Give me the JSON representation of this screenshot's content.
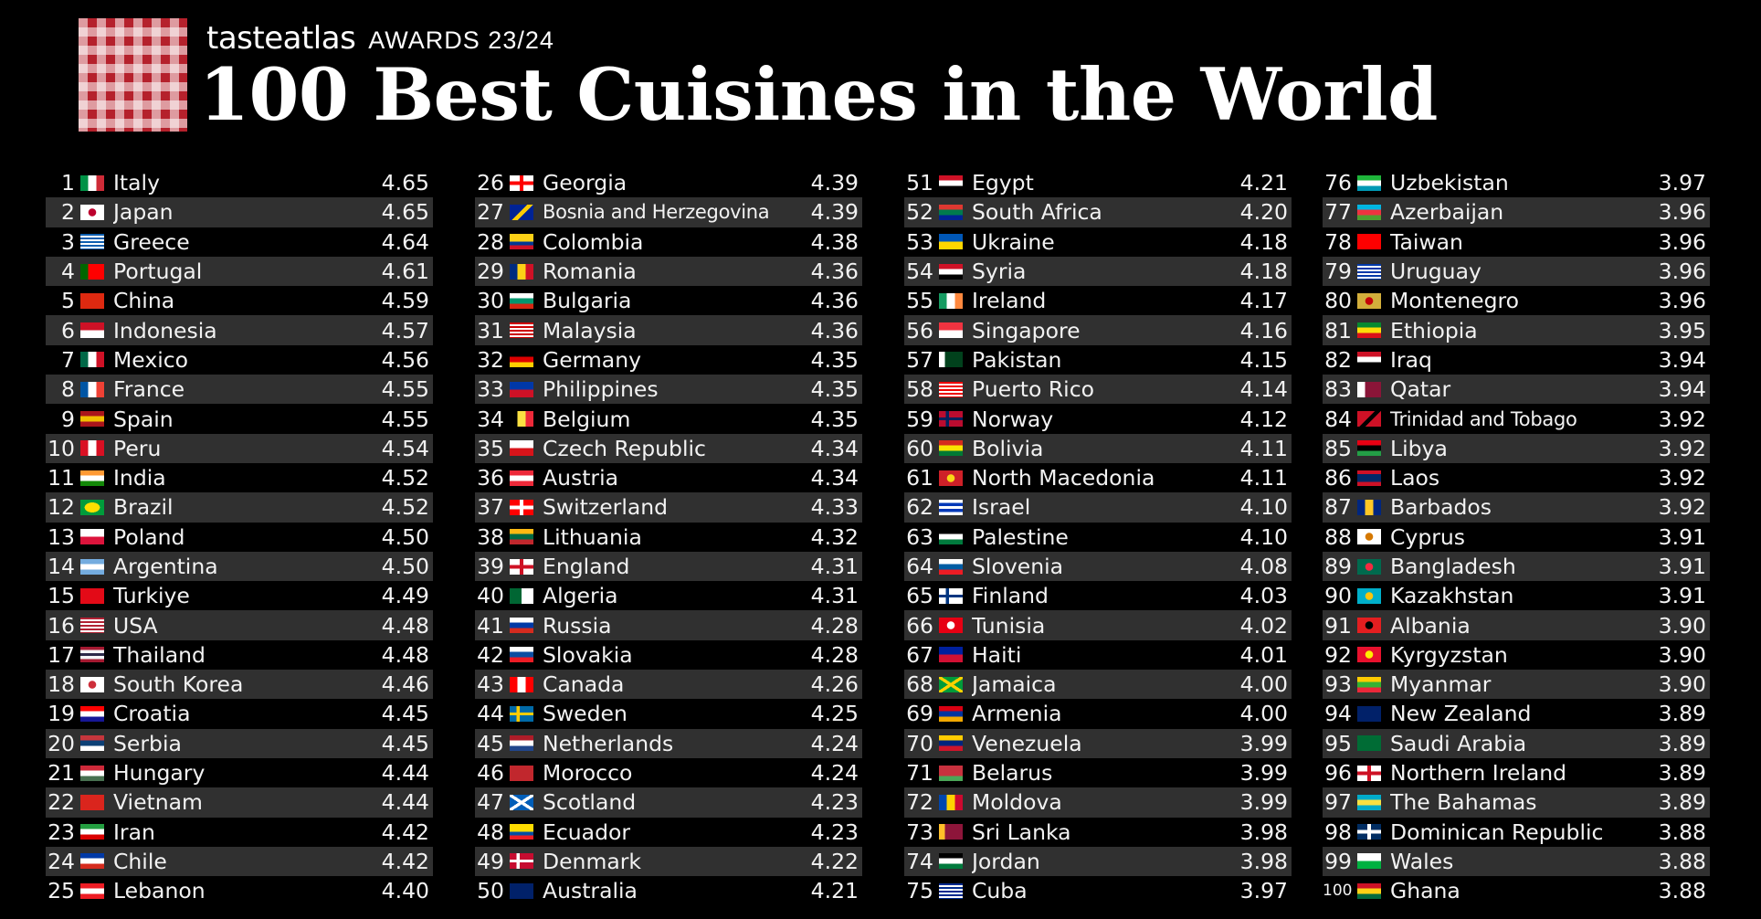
{
  "header": {
    "brand": "tasteatlas",
    "awards": "AWARDS 23/24",
    "title": "100 Best Cuisines in the World"
  },
  "columns": [
    [
      {
        "rank": "1",
        "country": "Italy",
        "score": "4.65",
        "flag": [
          "#009246",
          "#ffffff",
          "#ce2b37"
        ],
        "dir": "v"
      },
      {
        "rank": "2",
        "country": "Japan",
        "score": "4.65",
        "flag": [
          "#ffffff",
          "#bc002d"
        ],
        "dir": "dot"
      },
      {
        "rank": "3",
        "country": "Greece",
        "score": "4.64",
        "flag": [
          "#0d5eaf",
          "#ffffff"
        ],
        "dir": "stripes"
      },
      {
        "rank": "4",
        "country": "Portugal",
        "score": "4.61",
        "flag": [
          "#006600",
          "#ff0000",
          "#ff0000"
        ],
        "dir": "v"
      },
      {
        "rank": "5",
        "country": "China",
        "score": "4.59",
        "flag": [
          "#de2910"
        ],
        "dir": "solid"
      },
      {
        "rank": "6",
        "country": "Indonesia",
        "score": "4.57",
        "flag": [
          "#ce1126",
          "#ffffff"
        ],
        "dir": "h"
      },
      {
        "rank": "7",
        "country": "Mexico",
        "score": "4.56",
        "flag": [
          "#006847",
          "#ffffff",
          "#ce1126"
        ],
        "dir": "v"
      },
      {
        "rank": "8",
        "country": "France",
        "score": "4.55",
        "flag": [
          "#0055a4",
          "#ffffff",
          "#ef4135"
        ],
        "dir": "v"
      },
      {
        "rank": "9",
        "country": "Spain",
        "score": "4.55",
        "flag": [
          "#aa151b",
          "#f1bf00",
          "#aa151b"
        ],
        "dir": "h"
      },
      {
        "rank": "10",
        "country": "Peru",
        "score": "4.54",
        "flag": [
          "#d91023",
          "#ffffff",
          "#d91023"
        ],
        "dir": "v"
      },
      {
        "rank": "11",
        "country": "India",
        "score": "4.52",
        "flag": [
          "#ff9933",
          "#ffffff",
          "#138808"
        ],
        "dir": "h"
      },
      {
        "rank": "12",
        "country": "Brazil",
        "score": "4.52",
        "flag": [
          "#009c3b",
          "#ffdf00"
        ],
        "dir": "diamond"
      },
      {
        "rank": "13",
        "country": "Poland",
        "score": "4.50",
        "flag": [
          "#ffffff",
          "#dc143c"
        ],
        "dir": "h"
      },
      {
        "rank": "14",
        "country": "Argentina",
        "score": "4.50",
        "flag": [
          "#74acdf",
          "#ffffff",
          "#74acdf"
        ],
        "dir": "h"
      },
      {
        "rank": "15",
        "country": "Turkiye",
        "score": "4.49",
        "flag": [
          "#e30a17"
        ],
        "dir": "solid"
      },
      {
        "rank": "16",
        "country": "USA",
        "score": "4.48",
        "flag": [
          "#b22234",
          "#ffffff"
        ],
        "dir": "stripes"
      },
      {
        "rank": "17",
        "country": "Thailand",
        "score": "4.48",
        "flag": [
          "#a51931",
          "#f4f5f8",
          "#2d2a4a",
          "#f4f5f8",
          "#a51931"
        ],
        "dir": "h"
      },
      {
        "rank": "18",
        "country": "South Korea",
        "score": "4.46",
        "flag": [
          "#ffffff",
          "#cd2e3a"
        ],
        "dir": "dot"
      },
      {
        "rank": "19",
        "country": "Croatia",
        "score": "4.45",
        "flag": [
          "#ff0000",
          "#ffffff",
          "#171796"
        ],
        "dir": "h"
      },
      {
        "rank": "20",
        "country": "Serbia",
        "score": "4.45",
        "flag": [
          "#c6363c",
          "#0c4076",
          "#ffffff"
        ],
        "dir": "h"
      },
      {
        "rank": "21",
        "country": "Hungary",
        "score": "4.44",
        "flag": [
          "#ce2939",
          "#ffffff",
          "#477050"
        ],
        "dir": "h"
      },
      {
        "rank": "22",
        "country": "Vietnam",
        "score": "4.44",
        "flag": [
          "#da251d"
        ],
        "dir": "solid"
      },
      {
        "rank": "23",
        "country": "Iran",
        "score": "4.42",
        "flag": [
          "#239f40",
          "#ffffff",
          "#da0000"
        ],
        "dir": "h"
      },
      {
        "rank": "24",
        "country": "Chile",
        "score": "4.42",
        "flag": [
          "#0039a6",
          "#ffffff",
          "#d52b1e"
        ],
        "dir": "h"
      },
      {
        "rank": "25",
        "country": "Lebanon",
        "score": "4.40",
        "flag": [
          "#ed1c24",
          "#ffffff",
          "#ed1c24"
        ],
        "dir": "h"
      }
    ],
    [
      {
        "rank": "26",
        "country": "Georgia",
        "score": "4.39",
        "flag": [
          "#ffffff",
          "#ff0000"
        ],
        "dir": "cross"
      },
      {
        "rank": "27",
        "country": "Bosnia and Herzegovina",
        "score": "4.39",
        "flag": [
          "#002395",
          "#fecb00"
        ],
        "dir": "diag"
      },
      {
        "rank": "28",
        "country": "Colombia",
        "score": "4.38",
        "flag": [
          "#fcd116",
          "#fcd116",
          "#003893",
          "#ce1126"
        ],
        "dir": "h"
      },
      {
        "rank": "29",
        "country": "Romania",
        "score": "4.36",
        "flag": [
          "#002b7f",
          "#fcd116",
          "#ce1126"
        ],
        "dir": "v"
      },
      {
        "rank": "30",
        "country": "Bulgaria",
        "score": "4.36",
        "flag": [
          "#ffffff",
          "#00966e",
          "#d62612"
        ],
        "dir": "h"
      },
      {
        "rank": "31",
        "country": "Malaysia",
        "score": "4.36",
        "flag": [
          "#cc0001",
          "#ffffff"
        ],
        "dir": "stripes"
      },
      {
        "rank": "32",
        "country": "Germany",
        "score": "4.35",
        "flag": [
          "#000000",
          "#dd0000",
          "#ffce00"
        ],
        "dir": "h"
      },
      {
        "rank": "33",
        "country": "Philippines",
        "score": "4.35",
        "flag": [
          "#0038a8",
          "#ce1126"
        ],
        "dir": "h"
      },
      {
        "rank": "34",
        "country": "Belgium",
        "score": "4.35",
        "flag": [
          "#000000",
          "#fae042",
          "#ed2939"
        ],
        "dir": "v"
      },
      {
        "rank": "35",
        "country": "Czech Republic",
        "score": "4.34",
        "flag": [
          "#ffffff",
          "#d7141a"
        ],
        "dir": "h"
      },
      {
        "rank": "36",
        "country": "Austria",
        "score": "4.34",
        "flag": [
          "#ed2939",
          "#ffffff",
          "#ed2939"
        ],
        "dir": "h"
      },
      {
        "rank": "37",
        "country": "Switzerland",
        "score": "4.33",
        "flag": [
          "#ff0000",
          "#ffffff"
        ],
        "dir": "plus"
      },
      {
        "rank": "38",
        "country": "Lithuania",
        "score": "4.32",
        "flag": [
          "#fdb913",
          "#006a44",
          "#c1272d"
        ],
        "dir": "h"
      },
      {
        "rank": "39",
        "country": "England",
        "score": "4.31",
        "flag": [
          "#ffffff",
          "#ce1124"
        ],
        "dir": "cross"
      },
      {
        "rank": "40",
        "country": "Algeria",
        "score": "4.31",
        "flag": [
          "#006633",
          "#ffffff"
        ],
        "dir": "v"
      },
      {
        "rank": "41",
        "country": "Russia",
        "score": "4.28",
        "flag": [
          "#ffffff",
          "#0039a6",
          "#d52b1e"
        ],
        "dir": "h"
      },
      {
        "rank": "42",
        "country": "Slovakia",
        "score": "4.28",
        "flag": [
          "#ffffff",
          "#0b4ea2",
          "#ee1c25"
        ],
        "dir": "h"
      },
      {
        "rank": "43",
        "country": "Canada",
        "score": "4.26",
        "flag": [
          "#ff0000",
          "#ffffff",
          "#ff0000"
        ],
        "dir": "v"
      },
      {
        "rank": "44",
        "country": "Sweden",
        "score": "4.25",
        "flag": [
          "#006aa7",
          "#fecc00"
        ],
        "dir": "nordic"
      },
      {
        "rank": "45",
        "country": "Netherlands",
        "score": "4.24",
        "flag": [
          "#ae1c28",
          "#ffffff",
          "#21468b"
        ],
        "dir": "h"
      },
      {
        "rank": "46",
        "country": "Morocco",
        "score": "4.24",
        "flag": [
          "#c1272d"
        ],
        "dir": "solid"
      },
      {
        "rank": "47",
        "country": "Scotland",
        "score": "4.23",
        "flag": [
          "#005eb8",
          "#ffffff"
        ],
        "dir": "saltire"
      },
      {
        "rank": "48",
        "country": "Ecuador",
        "score": "4.23",
        "flag": [
          "#ffdd00",
          "#ffdd00",
          "#034ea2",
          "#ed1c24"
        ],
        "dir": "h"
      },
      {
        "rank": "49",
        "country": "Denmark",
        "score": "4.22",
        "flag": [
          "#c60c30",
          "#ffffff"
        ],
        "dir": "nordic"
      },
      {
        "rank": "50",
        "country": "Australia",
        "score": "4.21",
        "flag": [
          "#012169"
        ],
        "dir": "solid"
      }
    ],
    [
      {
        "rank": "51",
        "country": "Egypt",
        "score": "4.21",
        "flag": [
          "#ce1126",
          "#ffffff",
          "#000000"
        ],
        "dir": "h"
      },
      {
        "rank": "52",
        "country": "South Africa",
        "score": "4.20",
        "flag": [
          "#de3831",
          "#007a4d",
          "#002395"
        ],
        "dir": "h"
      },
      {
        "rank": "53",
        "country": "Ukraine",
        "score": "4.18",
        "flag": [
          "#0057b7",
          "#ffd700"
        ],
        "dir": "h"
      },
      {
        "rank": "54",
        "country": "Syria",
        "score": "4.18",
        "flag": [
          "#ce1126",
          "#ffffff",
          "#000000"
        ],
        "dir": "h"
      },
      {
        "rank": "55",
        "country": "Ireland",
        "score": "4.17",
        "flag": [
          "#169b62",
          "#ffffff",
          "#ff883e"
        ],
        "dir": "v"
      },
      {
        "rank": "56",
        "country": "Singapore",
        "score": "4.16",
        "flag": [
          "#ef3340",
          "#ffffff"
        ],
        "dir": "h"
      },
      {
        "rank": "57",
        "country": "Pakistan",
        "score": "4.15",
        "flag": [
          "#ffffff",
          "#01411c",
          "#01411c",
          "#01411c"
        ],
        "dir": "v"
      },
      {
        "rank": "58",
        "country": "Puerto Rico",
        "score": "4.14",
        "flag": [
          "#ed0000",
          "#ffffff"
        ],
        "dir": "stripes"
      },
      {
        "rank": "59",
        "country": "Norway",
        "score": "4.12",
        "flag": [
          "#ba0c2f",
          "#00205b"
        ],
        "dir": "nordic"
      },
      {
        "rank": "60",
        "country": "Bolivia",
        "score": "4.11",
        "flag": [
          "#d52b1e",
          "#f9e300",
          "#007934"
        ],
        "dir": "h"
      },
      {
        "rank": "61",
        "country": "North Macedonia",
        "score": "4.11",
        "flag": [
          "#ce2028",
          "#f9d616"
        ],
        "dir": "sun"
      },
      {
        "rank": "62",
        "country": "Israel",
        "score": "4.10",
        "flag": [
          "#ffffff",
          "#0038b8",
          "#ffffff",
          "#0038b8",
          "#ffffff"
        ],
        "dir": "h"
      },
      {
        "rank": "63",
        "country": "Palestine",
        "score": "4.10",
        "flag": [
          "#000000",
          "#ffffff",
          "#007a3d"
        ],
        "dir": "h"
      },
      {
        "rank": "64",
        "country": "Slovenia",
        "score": "4.08",
        "flag": [
          "#ffffff",
          "#005da4",
          "#ed1c24"
        ],
        "dir": "h"
      },
      {
        "rank": "65",
        "country": "Finland",
        "score": "4.03",
        "flag": [
          "#ffffff",
          "#003580"
        ],
        "dir": "nordic"
      },
      {
        "rank": "66",
        "country": "Tunisia",
        "score": "4.02",
        "flag": [
          "#e70013",
          "#ffffff"
        ],
        "dir": "dot"
      },
      {
        "rank": "67",
        "country": "Haiti",
        "score": "4.01",
        "flag": [
          "#00209f",
          "#d21034"
        ],
        "dir": "h"
      },
      {
        "rank": "68",
        "country": "Jamaica",
        "score": "4.00",
        "flag": [
          "#009b3a",
          "#fed100"
        ],
        "dir": "saltire"
      },
      {
        "rank": "69",
        "country": "Armenia",
        "score": "4.00",
        "flag": [
          "#d90012",
          "#0033a0",
          "#f2a800"
        ],
        "dir": "h"
      },
      {
        "rank": "70",
        "country": "Venezuela",
        "score": "3.99",
        "flag": [
          "#ffcc00",
          "#00247d",
          "#cf142b"
        ],
        "dir": "h"
      },
      {
        "rank": "71",
        "country": "Belarus",
        "score": "3.99",
        "flag": [
          "#c8313e",
          "#c8313e",
          "#4aa657"
        ],
        "dir": "h"
      },
      {
        "rank": "72",
        "country": "Moldova",
        "score": "3.99",
        "flag": [
          "#0046ae",
          "#ffd200",
          "#cc092f"
        ],
        "dir": "v"
      },
      {
        "rank": "73",
        "country": "Sri Lanka",
        "score": "3.98",
        "flag": [
          "#ffbe29",
          "#8d153a",
          "#8d153a",
          "#8d153a"
        ],
        "dir": "v"
      },
      {
        "rank": "74",
        "country": "Jordan",
        "score": "3.98",
        "flag": [
          "#000000",
          "#ffffff",
          "#007a3d"
        ],
        "dir": "h"
      },
      {
        "rank": "75",
        "country": "Cuba",
        "score": "3.97",
        "flag": [
          "#002a8f",
          "#ffffff"
        ],
        "dir": "stripes"
      }
    ],
    [
      {
        "rank": "76",
        "country": "Uzbekistan",
        "score": "3.97",
        "flag": [
          "#1eb53a",
          "#ffffff",
          "#0099b5"
        ],
        "dir": "h"
      },
      {
        "rank": "77",
        "country": "Azerbaijan",
        "score": "3.96",
        "flag": [
          "#00b5e2",
          "#ef3340",
          "#509e2f"
        ],
        "dir": "h"
      },
      {
        "rank": "78",
        "country": "Taiwan",
        "score": "3.96",
        "flag": [
          "#fe0000"
        ],
        "dir": "solid"
      },
      {
        "rank": "79",
        "country": "Uruguay",
        "score": "3.96",
        "flag": [
          "#0038a8",
          "#ffffff"
        ],
        "dir": "stripes"
      },
      {
        "rank": "80",
        "country": "Montenegro",
        "score": "3.96",
        "flag": [
          "#d3ae3b",
          "#c40308"
        ],
        "dir": "dot"
      },
      {
        "rank": "81",
        "country": "Ethiopia",
        "score": "3.95",
        "flag": [
          "#078930",
          "#fcdd09",
          "#da121a"
        ],
        "dir": "h"
      },
      {
        "rank": "82",
        "country": "Iraq",
        "score": "3.94",
        "flag": [
          "#ce1126",
          "#ffffff",
          "#000000"
        ],
        "dir": "h"
      },
      {
        "rank": "83",
        "country": "Qatar",
        "score": "3.94",
        "flag": [
          "#ffffff",
          "#8a1538",
          "#8a1538"
        ],
        "dir": "v"
      },
      {
        "rank": "84",
        "country": "Trinidad and Tobago",
        "score": "3.92",
        "flag": [
          "#ce1126",
          "#000000"
        ],
        "dir": "diag"
      },
      {
        "rank": "85",
        "country": "Libya",
        "score": "3.92",
        "flag": [
          "#e70013",
          "#000000",
          "#239e46"
        ],
        "dir": "h"
      },
      {
        "rank": "86",
        "country": "Laos",
        "score": "3.92",
        "flag": [
          "#ce1126",
          "#002868",
          "#002868",
          "#ce1126"
        ],
        "dir": "h"
      },
      {
        "rank": "87",
        "country": "Barbados",
        "score": "3.92",
        "flag": [
          "#00267f",
          "#ffc726",
          "#00267f"
        ],
        "dir": "v"
      },
      {
        "rank": "88",
        "country": "Cyprus",
        "score": "3.91",
        "flag": [
          "#ffffff",
          "#d57800"
        ],
        "dir": "dot"
      },
      {
        "rank": "89",
        "country": "Bangladesh",
        "score": "3.91",
        "flag": [
          "#006a4e",
          "#f42a41"
        ],
        "dir": "dot"
      },
      {
        "rank": "90",
        "country": "Kazakhstan",
        "score": "3.91",
        "flag": [
          "#00afca",
          "#fec50c"
        ],
        "dir": "dot"
      },
      {
        "rank": "91",
        "country": "Albania",
        "score": "3.90",
        "flag": [
          "#e41e20",
          "#000000"
        ],
        "dir": "dot"
      },
      {
        "rank": "92",
        "country": "Kyrgyzstan",
        "score": "3.90",
        "flag": [
          "#e8112d",
          "#ffef00"
        ],
        "dir": "dot"
      },
      {
        "rank": "93",
        "country": "Myanmar",
        "score": "3.90",
        "flag": [
          "#fecb00",
          "#34b233",
          "#ea2839"
        ],
        "dir": "h"
      },
      {
        "rank": "94",
        "country": "New Zealand",
        "score": "3.89",
        "flag": [
          "#012169"
        ],
        "dir": "solid"
      },
      {
        "rank": "95",
        "country": "Saudi Arabia",
        "score": "3.89",
        "flag": [
          "#006c35"
        ],
        "dir": "solid"
      },
      {
        "rank": "96",
        "country": "Northern Ireland",
        "score": "3.89",
        "flag": [
          "#ffffff",
          "#ce1124"
        ],
        "dir": "cross"
      },
      {
        "rank": "97",
        "country": "The Bahamas",
        "score": "3.89",
        "flag": [
          "#00abc9",
          "#fae042",
          "#00abc9"
        ],
        "dir": "h"
      },
      {
        "rank": "98",
        "country": "Dominican Republic",
        "score": "3.88",
        "flag": [
          "#002d62",
          "#ffffff"
        ],
        "dir": "plus"
      },
      {
        "rank": "99",
        "country": "Wales",
        "score": "3.88",
        "flag": [
          "#ffffff",
          "#00b140"
        ],
        "dir": "h"
      },
      {
        "rank": "100",
        "country": "Ghana",
        "score": "3.88",
        "flag": [
          "#ce1126",
          "#fcd116",
          "#006b3f"
        ],
        "dir": "h"
      }
    ]
  ]
}
